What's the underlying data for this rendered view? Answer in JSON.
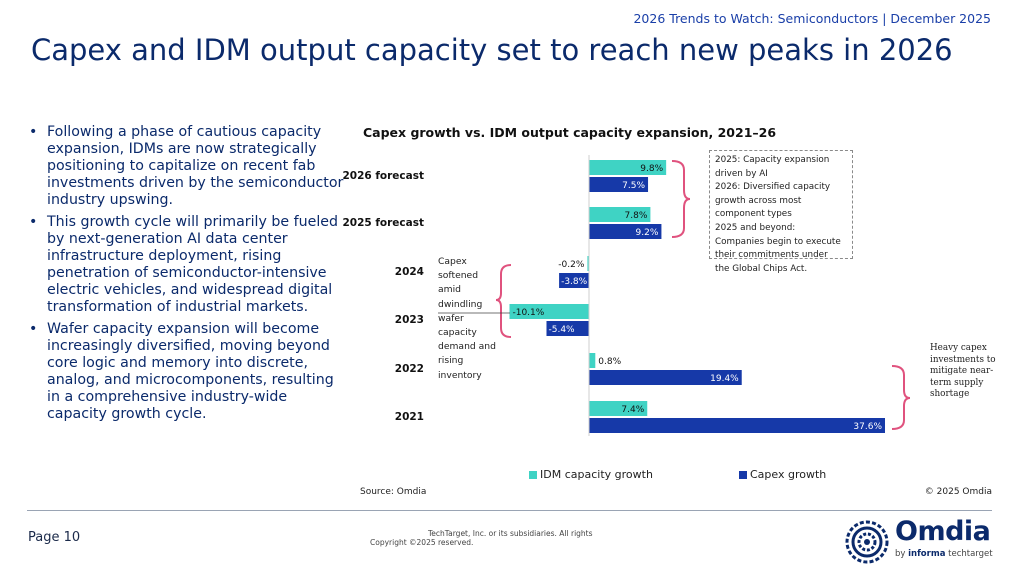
{
  "header": {
    "reference": "2026 Trends to Watch: Semiconductors | December 2025",
    "title": "Capex and IDM output capacity set to reach new peaks in 2026"
  },
  "bullets": [
    "Following a phase of cautious capacity expansion, IDMs are now strategically positioning to capitalize on recent fab investments driven by the semiconductor industry upswing.",
    "This growth cycle will primarily be fueled by next-generation AI data center infrastructure deployment, rising penetration of semiconductor-intensive electric vehicles, and widespread digital transformation of industrial markets.",
    "Wafer capacity expansion will become increasingly diversified, moving beyond core logic and memory into discrete, analog, and microcomponents, resulting in a comprehensive industry-wide capacity growth cycle."
  ],
  "chart_data": {
    "type": "bar",
    "orientation": "horizontal",
    "title": "Capex growth vs. IDM output capacity expansion, 2021–26",
    "categories": [
      "2026 forecast",
      "2025 forecast",
      "2024",
      "2023",
      "2022",
      "2021"
    ],
    "series": [
      {
        "name": "IDM capacity growth",
        "color": "#3fd3c4",
        "values": [
          9.8,
          7.8,
          -0.2,
          -10.1,
          0.8,
          7.4
        ],
        "labels": [
          "9.8%",
          "7.8%",
          "-0.2%",
          "-10.1%",
          "0.8%",
          "7.4%"
        ]
      },
      {
        "name": "Capex growth",
        "color": "#1639a8",
        "values": [
          7.5,
          9.2,
          -3.8,
          -5.4,
          19.4,
          37.6
        ],
        "labels": [
          "7.5%",
          "9.2%",
          "-3.8%",
          "-5.4%",
          "19.4%",
          "37.6%"
        ]
      }
    ],
    "legend_position": "bottom",
    "grid": false
  },
  "annotations": {
    "box_lines": [
      "2025: Capacity expansion",
      "driven by AI",
      "2026: Diversified capacity",
      "growth across most",
      "component types",
      "2025 and beyond:",
      "Companies begin to execute",
      "their commitments under",
      "the Global Chips Act."
    ],
    "left_note": "Capex softened amid dwindling wafer capacity demand and rising inventory",
    "right_note": "Heavy capex investments to mitigate near-term supply shortage"
  },
  "footer": {
    "source": "Source: Omdia",
    "copyright": "© 2025 Omdia",
    "page": "Page 10",
    "legal_line1": "TechTarget, Inc. or its subsidiaries. All rights",
    "legal_line2": "Copyright ©2025 reserved.",
    "logo_word": "Omdia",
    "logo_tag_prefix": "by",
    "logo_tag_brand": "informa",
    "logo_tag_suffix": "techtarget"
  }
}
